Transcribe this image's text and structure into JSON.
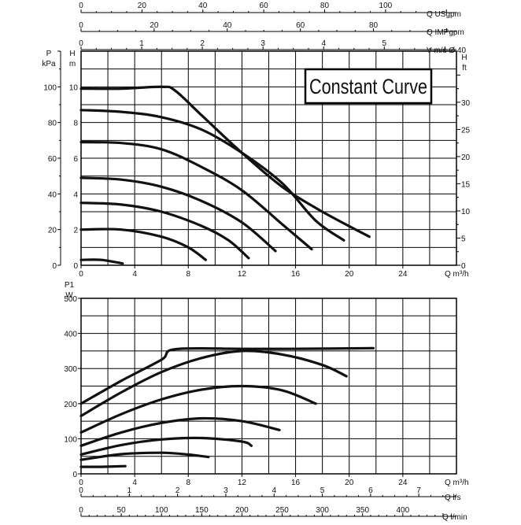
{
  "chart_data": [
    {
      "type": "line",
      "title": "Constant Curve",
      "x_axis": {
        "label": "Q m³/h",
        "ticks": [
          "0",
          "4",
          "8",
          "12",
          "16",
          "20",
          "24"
        ],
        "range": [
          0,
          28
        ]
      },
      "y_left_head": {
        "label": "H",
        "unit": "m",
        "ticks": [
          "0",
          "2",
          "4",
          "6",
          "8",
          "10"
        ],
        "range": [
          0,
          12
        ]
      },
      "y_left_pressure": {
        "label": "P",
        "unit": "kPa",
        "ticks": [
          "0",
          "20",
          "40",
          "60",
          "80",
          "100"
        ],
        "range": [
          0,
          120
        ]
      },
      "y_right_head_ft": {
        "label": "H",
        "unit": "ft",
        "ticks": [
          "0",
          "5",
          "10",
          "15",
          "20",
          "25",
          "30"
        ],
        "range": [
          0,
          39.4
        ]
      },
      "top_axes": [
        {
          "label": "Q USgpm",
          "ticks": [
            "0",
            "20",
            "40",
            "60",
            "80",
            "100"
          ],
          "range": [
            0,
            123.3
          ]
        },
        {
          "label": "Q IMPgpm",
          "ticks": [
            "0",
            "20",
            "40",
            "60",
            "80"
          ],
          "range": [
            0,
            102.7
          ]
        },
        {
          "label": "V m/s Ø 40",
          "ticks": [
            "0",
            "1",
            "2",
            "3",
            "4",
            "5"
          ],
          "range": [
            0,
            6.19
          ]
        }
      ],
      "series": [
        {
          "points": [
            [
              0,
              0.3
            ],
            [
              1.5,
              0.3
            ],
            [
              3.1,
              0.1
            ]
          ]
        },
        {
          "points": [
            [
              0,
              2.0
            ],
            [
              3,
              2.0
            ],
            [
              6,
              1.6
            ],
            [
              8,
              1.0
            ],
            [
              9.3,
              0.3
            ]
          ]
        },
        {
          "points": [
            [
              0,
              3.5
            ],
            [
              3,
              3.4
            ],
            [
              6,
              3.0
            ],
            [
              9,
              2.2
            ],
            [
              11,
              1.4
            ],
            [
              12.5,
              0.4
            ]
          ]
        },
        {
          "points": [
            [
              0,
              4.9
            ],
            [
              3,
              4.8
            ],
            [
              6,
              4.4
            ],
            [
              9,
              3.6
            ],
            [
              12,
              2.4
            ],
            [
              14.5,
              0.8
            ]
          ]
        },
        {
          "points": [
            [
              0,
              6.9
            ],
            [
              3,
              6.85
            ],
            [
              6,
              6.5
            ],
            [
              9,
              5.5
            ],
            [
              12,
              4.2
            ],
            [
              15,
              2.3
            ],
            [
              17.2,
              0.9
            ]
          ]
        },
        {
          "points": [
            [
              0,
              8.7
            ],
            [
              3,
              8.6
            ],
            [
              6,
              8.3
            ],
            [
              9,
              7.6
            ],
            [
              12,
              6.3
            ],
            [
              15,
              4.6
            ],
            [
              17.5,
              2.5
            ],
            [
              19.6,
              1.4
            ]
          ]
        },
        {
          "points": [
            [
              0,
              9.9
            ],
            [
              3,
              9.9
            ],
            [
              6,
              10.0
            ],
            [
              7,
              9.8
            ],
            [
              9,
              8.4
            ],
            [
              12,
              6.3
            ],
            [
              15,
              4.4
            ],
            [
              18,
              3.0
            ],
            [
              21.5,
              1.6
            ]
          ]
        }
      ]
    },
    {
      "type": "line",
      "title": "",
      "x_axis": {
        "label": "Q m³/h",
        "ticks": [
          "0",
          "4",
          "8",
          "12",
          "16",
          "20",
          "24"
        ],
        "range": [
          0,
          28
        ]
      },
      "y_axis": {
        "label": "P1",
        "unit": "W",
        "ticks": [
          "0",
          "100",
          "200",
          "300",
          "400",
          "500"
        ],
        "range": [
          0,
          500
        ]
      },
      "bottom_axes": [
        {
          "label": "Q l/s",
          "ticks": [
            "0",
            "1",
            "2",
            "3",
            "4",
            "5",
            "6",
            "7"
          ],
          "range": [
            0,
            7.78
          ]
        },
        {
          "label": "Q l/min",
          "ticks": [
            "0",
            "50",
            "100",
            "150",
            "200",
            "250",
            "300",
            "350",
            "400"
          ],
          "range": [
            0,
            466.7
          ]
        }
      ],
      "series": [
        {
          "points": [
            [
              0,
              20
            ],
            [
              1.5,
              20
            ],
            [
              3.3,
              22
            ]
          ]
        },
        {
          "points": [
            [
              0,
              40
            ],
            [
              3,
              56
            ],
            [
              6,
              60
            ],
            [
              8,
              55
            ],
            [
              9.5,
              48
            ]
          ]
        },
        {
          "points": [
            [
              0,
              55
            ],
            [
              3,
              82
            ],
            [
              6,
              98
            ],
            [
              9,
              102
            ],
            [
              12,
              92
            ],
            [
              12.7,
              80
            ]
          ]
        },
        {
          "points": [
            [
              0,
              80
            ],
            [
              3,
              118
            ],
            [
              6,
              145
            ],
            [
              9,
              158
            ],
            [
              12,
              150
            ],
            [
              14.8,
              125
            ]
          ]
        },
        {
          "points": [
            [
              0,
              118
            ],
            [
              3,
              170
            ],
            [
              6,
              212
            ],
            [
              9,
              240
            ],
            [
              12,
              250
            ],
            [
              15,
              238
            ],
            [
              17.5,
              200
            ]
          ]
        },
        {
          "points": [
            [
              0,
              165
            ],
            [
              3,
              232
            ],
            [
              6,
              290
            ],
            [
              9,
              330
            ],
            [
              12,
              350
            ],
            [
              15,
              340
            ],
            [
              18,
              310
            ],
            [
              19.8,
              278
            ]
          ]
        },
        {
          "points": [
            [
              0,
              200
            ],
            [
              3,
              265
            ],
            [
              6,
              325
            ],
            [
              7,
              355
            ],
            [
              12,
              356
            ],
            [
              16,
              356
            ],
            [
              21.8,
              358
            ]
          ]
        }
      ]
    }
  ]
}
